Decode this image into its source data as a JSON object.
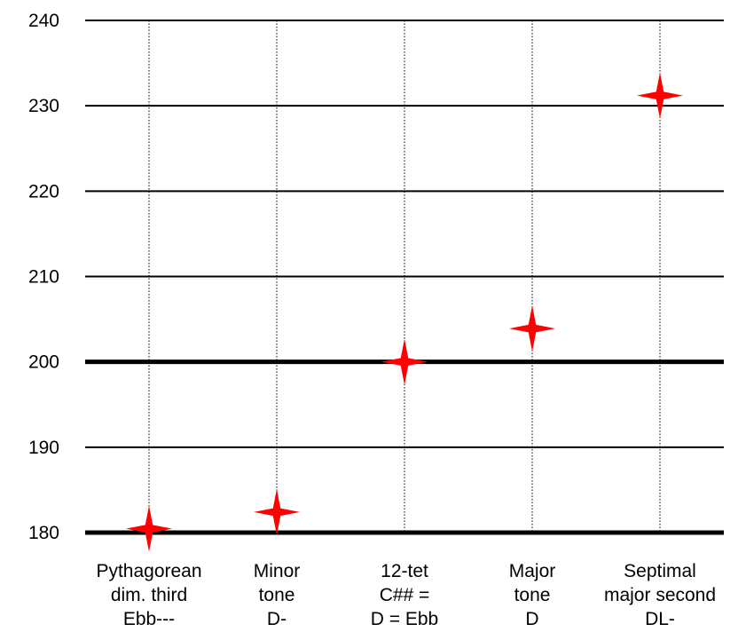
{
  "chart_data": {
    "type": "scatter",
    "title": "",
    "xlabel": "",
    "ylabel": "",
    "ylim": [
      180,
      240
    ],
    "yticks": [
      180,
      190,
      200,
      210,
      220,
      230,
      240
    ],
    "bold_reference_lines": [
      180,
      200
    ],
    "grid": true,
    "marker": "four-point-star",
    "marker_color": "#ff0000",
    "categories": [
      [
        "Pythagorean",
        "dim. third",
        "Ebb---"
      ],
      [
        "Minor",
        "tone",
        "D-"
      ],
      [
        "12-tet",
        "C## =",
        "D = Ebb"
      ],
      [
        "Major",
        "tone",
        "D"
      ],
      [
        "Septimal",
        "major second",
        "DL-"
      ]
    ],
    "values": [
      180.45,
      182.4,
      200.0,
      203.9,
      231.2
    ]
  }
}
